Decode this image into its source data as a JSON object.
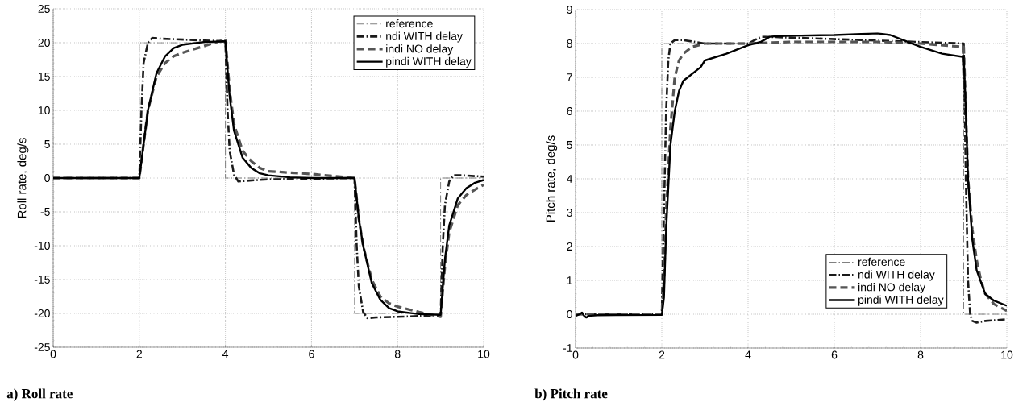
{
  "chart_data": [
    {
      "type": "line",
      "title": "a) Roll rate",
      "ylabel": "Roll rate, deg/s",
      "xlim": [
        0,
        10
      ],
      "ylim": [
        -25,
        25
      ],
      "xticks": [
        0,
        2,
        4,
        6,
        8,
        10
      ],
      "yticks": [
        -25,
        -20,
        -15,
        -10,
        -5,
        0,
        5,
        10,
        15,
        20,
        25
      ],
      "grid": true,
      "legend": "top right",
      "marker": "none",
      "series": [
        {
          "name": "reference",
          "color": "#808080",
          "line_style": "dashdot",
          "x": [
            0,
            2,
            2,
            4,
            4,
            7,
            7,
            9,
            9,
            10
          ],
          "values": [
            0,
            0,
            20,
            20,
            0,
            0,
            -20,
            -20,
            0,
            0
          ]
        },
        {
          "name": "ndi WITH delay",
          "color": "#1a1a1a",
          "line_style": "dashdot",
          "x": [
            0,
            2,
            2.05,
            2.1,
            2.2,
            2.3,
            2.5,
            4,
            4.05,
            4.1,
            4.2,
            4.3,
            4.5,
            5,
            7,
            7.05,
            7.1,
            7.2,
            7.3,
            7.5,
            9,
            9.05,
            9.1,
            9.2,
            9.3,
            9.5,
            10
          ],
          "values": [
            0,
            0,
            10,
            17,
            20,
            20.7,
            20.6,
            20.2,
            10,
            4,
            0.5,
            -0.5,
            -0.4,
            -0.2,
            0,
            -10,
            -16,
            -19.8,
            -20.7,
            -20.6,
            -20.3,
            -10,
            -4,
            -0.5,
            0.4,
            0.4,
            0.2
          ]
        },
        {
          "name": "indi NO delay",
          "color": "#555555",
          "line_style": "dashed",
          "x": [
            0,
            2,
            2.1,
            2.2,
            2.4,
            2.6,
            2.8,
            3,
            3.5,
            4,
            4.1,
            4.2,
            4.4,
            4.6,
            4.8,
            5,
            5.5,
            6,
            6.5,
            7,
            7.1,
            7.2,
            7.4,
            7.6,
            7.8,
            8,
            8.5,
            9,
            9.1,
            9.2,
            9.4,
            9.6,
            9.8,
            10
          ],
          "values": [
            0,
            0,
            5,
            10,
            15,
            17,
            18,
            18.5,
            19.5,
            20.5,
            13,
            8,
            4,
            2.5,
            1.5,
            1,
            0.8,
            0.6,
            0.3,
            0,
            -6,
            -10,
            -15,
            -17.5,
            -18.5,
            -19,
            -19.8,
            -20.5,
            -13,
            -8,
            -4,
            -2.5,
            -1.7,
            -1
          ]
        },
        {
          "name": "pindi WITH delay",
          "color": "#000000",
          "line_style": "solid",
          "x": [
            0,
            2,
            2.1,
            2.2,
            2.4,
            2.6,
            2.8,
            3,
            3.5,
            4,
            4.1,
            4.2,
            4.4,
            4.6,
            4.8,
            5,
            5.5,
            6,
            6.5,
            7,
            7.1,
            7.2,
            7.4,
            7.6,
            7.8,
            8,
            8.5,
            9,
            9.1,
            9.2,
            9.4,
            9.6,
            9.8,
            10
          ],
          "values": [
            0,
            0,
            5,
            10,
            15.5,
            18,
            19.2,
            19.7,
            20.1,
            20.2,
            12,
            7,
            3,
            1.5,
            0.7,
            0.4,
            0.1,
            0,
            0,
            0,
            -6,
            -10,
            -15.5,
            -18,
            -19.2,
            -19.7,
            -20.1,
            -20.2,
            -12,
            -7,
            -3,
            -1.5,
            -0.7,
            -0.3
          ]
        }
      ]
    },
    {
      "type": "line",
      "title": "b) Pitch rate",
      "ylabel": "Pitch rate, deg/s",
      "xlim": [
        0,
        10
      ],
      "ylim": [
        -1,
        9
      ],
      "xticks": [
        0,
        2,
        4,
        6,
        8,
        10
      ],
      "yticks": [
        -1,
        0,
        1,
        2,
        3,
        4,
        5,
        6,
        7,
        8,
        9
      ],
      "grid": true,
      "legend": "bottom right",
      "marker": "none",
      "series": [
        {
          "name": "reference",
          "color": "#808080",
          "line_style": "dashdot",
          "x": [
            0,
            2,
            2,
            9,
            9,
            10
          ],
          "values": [
            0,
            0,
            8,
            8,
            0,
            0
          ]
        },
        {
          "name": "ndi WITH delay",
          "color": "#1a1a1a",
          "line_style": "dashdot",
          "x": [
            0,
            2,
            2.05,
            2.1,
            2.15,
            2.2,
            2.3,
            2.5,
            3,
            3.5,
            4,
            4.3,
            4.4,
            9,
            9.05,
            9.1,
            9.15,
            9.2,
            9.3,
            9.5,
            10
          ],
          "values": [
            0,
            0,
            3,
            6,
            7.5,
            8,
            8.1,
            8.1,
            8,
            8,
            8,
            8.2,
            8.2,
            8,
            4,
            1,
            0,
            -0.2,
            -0.25,
            -0.2,
            -0.15
          ]
        },
        {
          "name": "indi NO delay",
          "color": "#555555",
          "line_style": "dashed",
          "x": [
            0,
            2,
            2.05,
            2.1,
            2.2,
            2.3,
            2.4,
            2.5,
            2.7,
            3,
            3.5,
            4,
            5,
            6,
            7,
            8,
            9,
            9.05,
            9.1,
            9.2,
            9.3,
            9.4,
            9.5,
            9.7,
            10
          ],
          "values": [
            0,
            0,
            1,
            3,
            5.5,
            7,
            7.5,
            7.7,
            7.9,
            8,
            8,
            8,
            8.05,
            8.05,
            8.05,
            8,
            7.9,
            6,
            4,
            2.5,
            1.6,
            1,
            0.6,
            0.3,
            0.1
          ]
        },
        {
          "name": "pindi WITH delay",
          "color": "#000000",
          "line_style": "solid",
          "x": [
            0,
            0.1,
            0.15,
            0.2,
            0.25,
            0.3,
            0.5,
            2,
            2.05,
            2.1,
            2.2,
            2.3,
            2.4,
            2.5,
            2.7,
            2.9,
            3,
            3.5,
            4,
            4.3,
            4.5,
            4.7,
            5,
            6,
            7,
            7.3,
            7.7,
            8,
            8.5,
            9,
            9.05,
            9.1,
            9.2,
            9.3,
            9.5,
            9.7,
            10
          ],
          "values": [
            -0.05,
            0,
            0.05,
            -0.05,
            -0.1,
            -0.05,
            -0.03,
            -0.02,
            0.5,
            2.5,
            5,
            6,
            6.6,
            6.9,
            7.1,
            7.3,
            7.5,
            7.7,
            7.95,
            8.05,
            8.2,
            8.22,
            8.23,
            8.25,
            8.3,
            8.25,
            8.05,
            7.9,
            7.7,
            7.6,
            6,
            4,
            2.2,
            1.3,
            0.6,
            0.4,
            0.25
          ]
        }
      ]
    }
  ]
}
